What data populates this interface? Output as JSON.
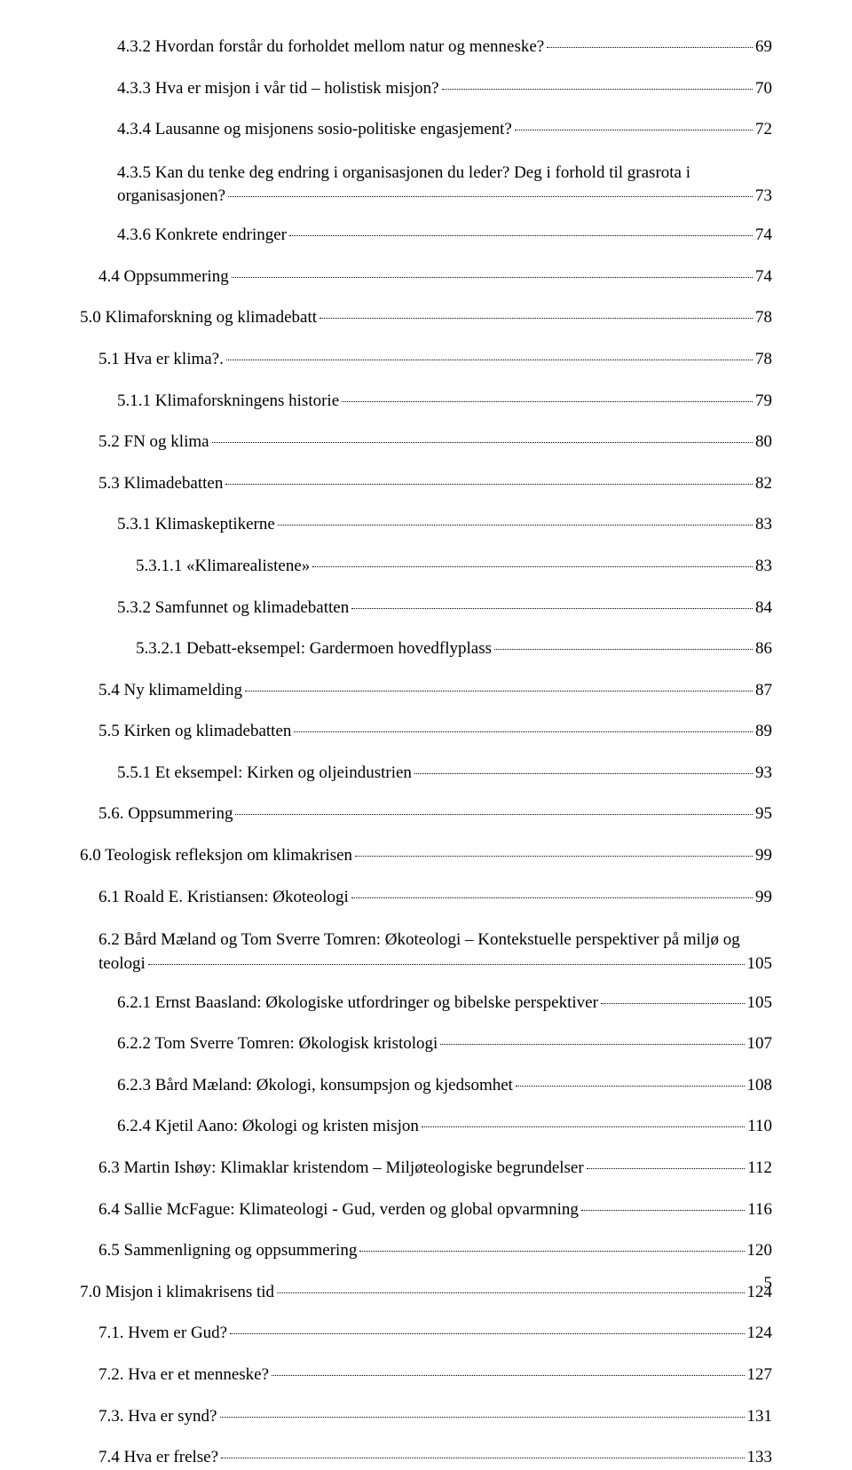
{
  "entries": [
    {
      "indent": 2,
      "text": "4.3.2 Hvordan forstår du forholdet mellom natur og menneske?",
      "page": "69"
    },
    {
      "indent": 2,
      "text": "4.3.3 Hva er misjon i vår tid – holistisk misjon?",
      "page": "70"
    },
    {
      "indent": 2,
      "text": "4.3.4 Lausanne og misjonens sosio-politiske engasjement?",
      "page": "72"
    },
    {
      "indent": 2,
      "multiline": true,
      "line1": "4.3.5 Kan du tenke deg endring i organisasjonen du leder? Deg i forhold til grasrota i",
      "line2": "organisasjonen?",
      "page": "73"
    },
    {
      "indent": 2,
      "text": "4.3.6 Konkrete endringer",
      "page": "74"
    },
    {
      "indent": 1,
      "text": "4.4 Oppsummering",
      "page": "74"
    },
    {
      "indent": 0,
      "text": "5.0 Klimaforskning og klimadebatt",
      "page": "78"
    },
    {
      "indent": 1,
      "text": "5.1 Hva er klima?.",
      "page": "78"
    },
    {
      "indent": 2,
      "text": "5.1.1 Klimaforskningens historie",
      "page": "79"
    },
    {
      "indent": 1,
      "text": "5.2 FN og klima",
      "page": "80"
    },
    {
      "indent": 1,
      "text": "5.3 Klimadebatten",
      "page": "82"
    },
    {
      "indent": 2,
      "text": "5.3.1 Klimaskeptikerne",
      "page": "83"
    },
    {
      "indent": 3,
      "text": "5.3.1.1 «Klimarealistene»",
      "page": "83"
    },
    {
      "indent": 2,
      "text": "5.3.2 Samfunnet og klimadebatten",
      "page": "84"
    },
    {
      "indent": 3,
      "text": "5.3.2.1 Debatt-eksempel: Gardermoen hovedflyplass",
      "page": "86"
    },
    {
      "indent": 1,
      "text": "5.4 Ny klimamelding",
      "page": "87"
    },
    {
      "indent": 1,
      "text": "5.5 Kirken og klimadebatten",
      "page": "89"
    },
    {
      "indent": 2,
      "text": "5.5.1 Et eksempel: Kirken og oljeindustrien",
      "page": "93"
    },
    {
      "indent": 1,
      "text": "5.6. Oppsummering",
      "page": "95"
    },
    {
      "indent": 0,
      "text": "6.0 Teologisk refleksjon om klimakrisen",
      "page": "99"
    },
    {
      "indent": 1,
      "text": "6.1 Roald E. Kristiansen: Økoteologi",
      "page": "99"
    },
    {
      "indent": 1,
      "multiline": true,
      "line1": "6.2 Bård Mæland og Tom Sverre Tomren: Økoteologi – Kontekstuelle perspektiver på miljø og",
      "line2": "teologi",
      "page": "105"
    },
    {
      "indent": 2,
      "text": "6.2.1 Ernst Baasland: Økologiske utfordringer og bibelske perspektiver",
      "page": "105"
    },
    {
      "indent": 2,
      "text": "6.2.2 Tom Sverre Tomren: Økologisk kristologi",
      "page": "107"
    },
    {
      "indent": 2,
      "text": "6.2.3 Bård Mæland: Økologi, konsumpsjon og kjedsomhet",
      "page": "108"
    },
    {
      "indent": 2,
      "text": "6.2.4 Kjetil Aano: Økologi og kristen misjon",
      "page": "110"
    },
    {
      "indent": 1,
      "text": "6.3 Martin Ishøy: Klimaklar kristendom – Miljøteologiske begrundelser",
      "page": "112"
    },
    {
      "indent": 1,
      "text": "6.4 Sallie McFague: Klimateologi - Gud, verden og global opvarmning",
      "page": "116"
    },
    {
      "indent": 1,
      "text": "6.5 Sammenligning og oppsummering",
      "page": "120"
    },
    {
      "indent": 0,
      "text": "7.0 Misjon i klimakrisens tid",
      "page": "124"
    },
    {
      "indent": 1,
      "text": "7.1. Hvem er Gud?",
      "page": "124"
    },
    {
      "indent": 1,
      "text": "7.2. Hva er et menneske?",
      "page": "127"
    },
    {
      "indent": 1,
      "text": "7.3. Hva er synd?",
      "page": "131"
    },
    {
      "indent": 1,
      "text": "7.4 Hva er frelse?",
      "page": "133"
    }
  ],
  "pageNumber": "5"
}
